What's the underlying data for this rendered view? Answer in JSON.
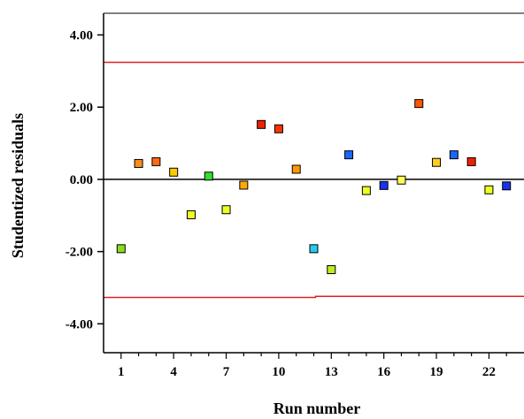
{
  "chart_data": {
    "type": "scatter",
    "xlabel": "Run number",
    "ylabel": "Studentized residuals",
    "xlim": [
      0,
      24
    ],
    "ylim": [
      -4.8,
      4.6
    ],
    "x_ticks": [
      1,
      4,
      7,
      10,
      13,
      16,
      19,
      22
    ],
    "x_tick_labels": [
      "1",
      "4",
      "7",
      "10",
      "13",
      "16",
      "19",
      "22"
    ],
    "y_ticks": [
      4,
      2,
      0,
      -2,
      -4
    ],
    "y_tick_labels": [
      "4.00",
      "2.00",
      "0.00",
      "-2.00",
      "-4.00"
    ],
    "zero_line": 0,
    "limit_lines": [
      {
        "name": "upper-limit",
        "y_start": 3.24,
        "y_end": 3.24,
        "color": "#e02020"
      },
      {
        "name": "lower-limit",
        "y_start": -3.27,
        "y_mid": -3.27,
        "y_end": -3.24,
        "step_x": 12.1,
        "color": "#e02020"
      }
    ],
    "points": [
      {
        "x": 1,
        "y": -1.92,
        "color": "#88dd22"
      },
      {
        "x": 2,
        "y": 0.44,
        "color": "#ff8c1a"
      },
      {
        "x": 3,
        "y": 0.49,
        "color": "#ff6a10"
      },
      {
        "x": 4,
        "y": 0.2,
        "color": "#ffcc00"
      },
      {
        "x": 5,
        "y": -0.98,
        "color": "#eeff22"
      },
      {
        "x": 6,
        "y": 0.09,
        "color": "#33dd33"
      },
      {
        "x": 7,
        "y": -0.84,
        "color": "#eeff22"
      },
      {
        "x": 8,
        "y": -0.16,
        "color": "#ffaa00"
      },
      {
        "x": 9,
        "y": 1.52,
        "color": "#ee2200"
      },
      {
        "x": 10,
        "y": 1.4,
        "color": "#ff3300"
      },
      {
        "x": 11,
        "y": 0.28,
        "color": "#ff9900"
      },
      {
        "x": 12,
        "y": -1.92,
        "color": "#22ccee"
      },
      {
        "x": 13,
        "y": -2.5,
        "color": "#bbee22"
      },
      {
        "x": 14,
        "y": 0.68,
        "color": "#1a66ff"
      },
      {
        "x": 15,
        "y": -0.31,
        "color": "#eeff22"
      },
      {
        "x": 16,
        "y": -0.17,
        "color": "#1a33ee"
      },
      {
        "x": 17,
        "y": -0.02,
        "color": "#ffff55"
      },
      {
        "x": 18,
        "y": 2.1,
        "color": "#ff5500"
      },
      {
        "x": 19,
        "y": 0.47,
        "color": "#ffcc22"
      },
      {
        "x": 20,
        "y": 0.68,
        "color": "#1a66ff"
      },
      {
        "x": 21,
        "y": 0.49,
        "color": "#ee2200"
      },
      {
        "x": 22,
        "y": -0.29,
        "color": "#eeff22"
      },
      {
        "x": 23,
        "y": -0.18,
        "color": "#1a33ee"
      }
    ]
  }
}
